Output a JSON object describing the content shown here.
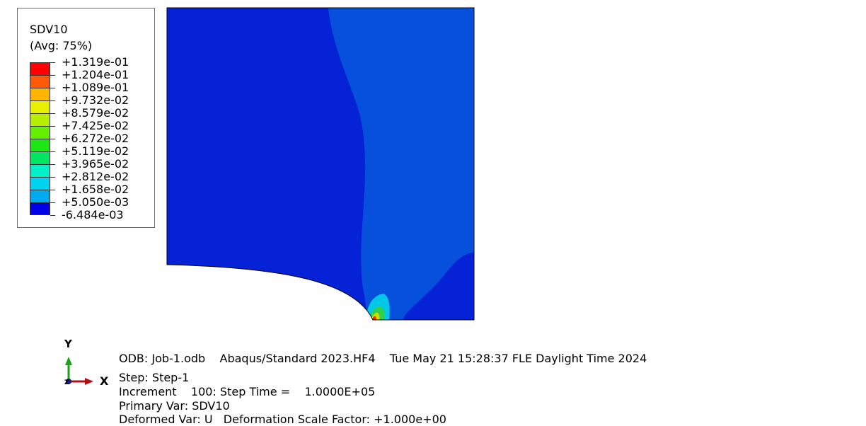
{
  "legend": {
    "variable": "SDV10",
    "averaging": "(Avg: 75%)",
    "levels": [
      {
        "label": "+1.319e-01",
        "color": "#ff0000"
      },
      {
        "label": "+1.204e-01",
        "color": "#ff5a0a"
      },
      {
        "label": "+1.089e-01",
        "color": "#ffb400"
      },
      {
        "label": "+9.732e-02",
        "color": "#e6f000"
      },
      {
        "label": "+8.579e-02",
        "color": "#b4f000"
      },
      {
        "label": "+7.425e-02",
        "color": "#64f000"
      },
      {
        "label": "+6.272e-02",
        "color": "#1ee614"
      },
      {
        "label": "+5.119e-02",
        "color": "#00e664"
      },
      {
        "label": "+3.965e-02",
        "color": "#00f0c8"
      },
      {
        "label": "+2.812e-02",
        "color": "#00d2f0"
      },
      {
        "label": "+1.658e-02",
        "color": "#00aaf0"
      },
      {
        "label": "+5.050e-03",
        "color": "#0a50dc"
      },
      {
        "label": "-6.484e-03",
        "color": "#0000e6"
      }
    ]
  },
  "model": {
    "colors": {
      "dominant": "#0522d6",
      "band": "#0750dc",
      "hotspot_cyan": "#00c8e6",
      "hotspot_green": "#30d050",
      "hotspot_yellow": "#d2dc00",
      "hotspot_red": "#ff2800",
      "outline": "#000000"
    }
  },
  "triad": {
    "y_label": "Y",
    "z_label": "Z",
    "x_label": "X"
  },
  "info": {
    "odb_line": "ODB: Job-1.odb    Abaqus/Standard 2023.HF4    Tue May 21 15:28:37 FLE Daylight Time 2024",
    "step_line": "Step: Step-1",
    "increment_line": "Increment    100: Step Time =    1.0000E+05",
    "primary_var_line": "Primary Var: SDV10",
    "deformed_var_line": "Deformed Var: U   Deformation Scale Factor: +1.000e+00"
  }
}
